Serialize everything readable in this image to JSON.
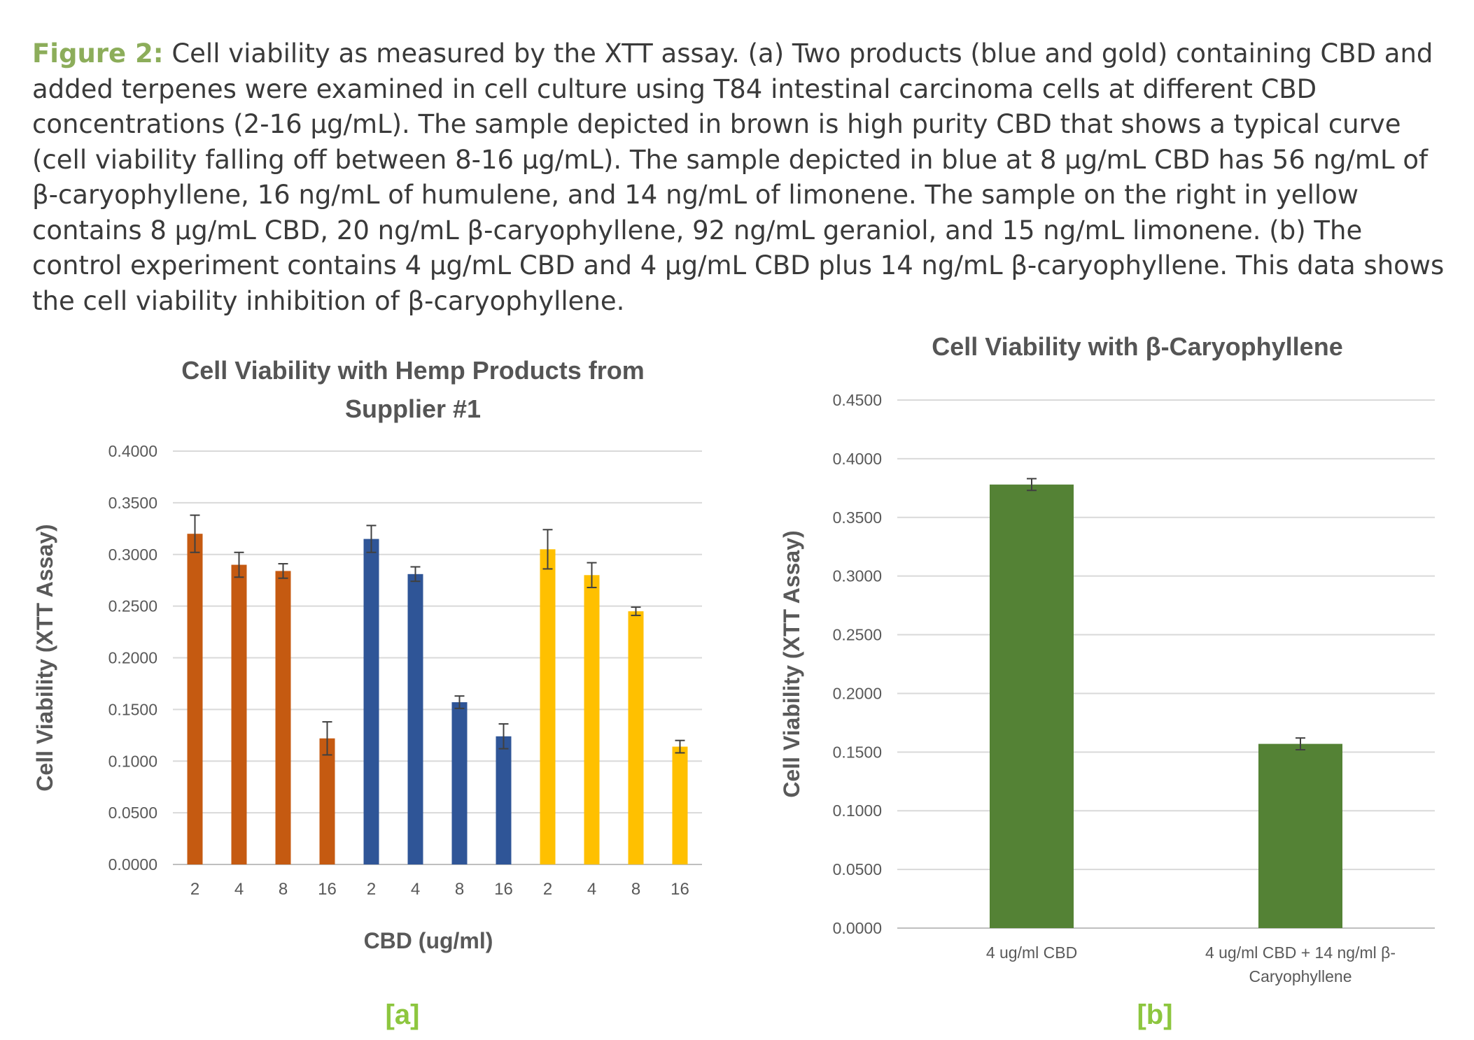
{
  "caption": {
    "label": "Figure 2:",
    "text": " Cell viability as measured by the XTT assay. (a) Two products (blue and gold) containing CBD and added terpenes were examined in cell culture using T84 intestinal carcinoma cells at different CBD concentrations (2-16 μg/mL). The sample depicted in brown is high purity CBD that shows a typical curve (cell viability falling off between 8-16 μg/mL). The sample depicted in blue at 8 μg/mL CBD has 56 ng/mL of β-caryophyllene, 16 ng/mL of humulene, and 14 ng/mL of limonene. The sample on the right in yellow contains 8 μg/mL CBD, 20 ng/mL β-caryophyllene, 92 ng/mL geraniol, and 15 ng/mL limonene. (b) The control experiment contains 4 μg/mL CBD and 4 μg/mL CBD plus 14 ng/mL β-caryophyllene. This data shows the cell viability inhibition of β-caryophyllene."
  },
  "chart_data": [
    {
      "type": "bar",
      "panel_label": "[a]",
      "title_lines": [
        "Cell Viability with Hemp Products from",
        "Supplier #1"
      ],
      "xlabel": "CBD (ug/ml)",
      "ylabel": "Cell Viability (XTT Assay)",
      "ylim": [
        0,
        0.4
      ],
      "yticks": [
        "0.0000",
        "0.0500",
        "0.1000",
        "0.1500",
        "0.2000",
        "0.2500",
        "0.3000",
        "0.3500",
        "0.4000"
      ],
      "grid": true,
      "categories": [
        "2",
        "4",
        "8",
        "16",
        "2",
        "4",
        "8",
        "16",
        "2",
        "4",
        "8",
        "16"
      ],
      "values": [
        0.32,
        0.29,
        0.284,
        0.122,
        0.315,
        0.281,
        0.157,
        0.124,
        0.305,
        0.28,
        0.245,
        0.114
      ],
      "errors": [
        0.018,
        0.012,
        0.007,
        0.016,
        0.013,
        0.007,
        0.006,
        0.012,
        0.019,
        0.012,
        0.004,
        0.006
      ],
      "colors": [
        "#c55a11",
        "#c55a11",
        "#c55a11",
        "#c55a11",
        "#2f5597",
        "#2f5597",
        "#2f5597",
        "#2f5597",
        "#ffc000",
        "#ffc000",
        "#ffc000",
        "#ffc000"
      ]
    },
    {
      "type": "bar",
      "panel_label": "[b]",
      "title_lines": [
        "Cell Viability with β-Caryophyllene"
      ],
      "xlabel": "",
      "ylabel": "Cell Viability (XTT Assay)",
      "ylim": [
        0,
        0.45
      ],
      "yticks": [
        "0.0000",
        "0.0500",
        "0.1000",
        "0.1500",
        "0.2000",
        "0.2500",
        "0.3000",
        "0.3500",
        "0.4000",
        "0.4500"
      ],
      "grid": true,
      "category_lines": [
        [
          "4 ug/ml CBD"
        ],
        [
          "4 ug/ml CBD + 14 ng/ml β-",
          "Caryophyllene"
        ]
      ],
      "values": [
        0.378,
        0.157
      ],
      "errors": [
        0.005,
        0.005
      ],
      "colors": [
        "#548235",
        "#548235"
      ]
    }
  ]
}
